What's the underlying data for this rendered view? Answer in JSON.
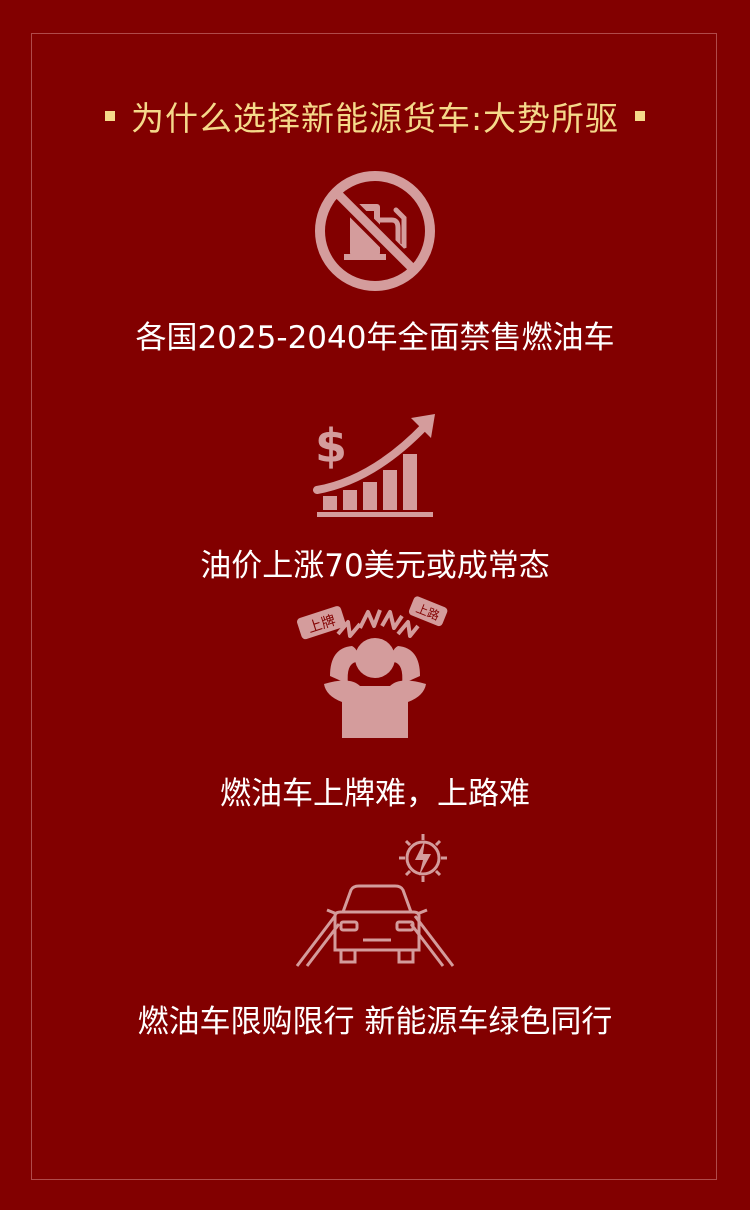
{
  "title": "为什么选择新能源货车:大势所驱",
  "colors": {
    "background": "#820000",
    "title": "#f5d98a",
    "icon": "#d49c9c",
    "caption": "#ffffff"
  },
  "items": [
    {
      "icon": "no-fuel-icon",
      "text": "各国2025-2040年全面禁售燃油车"
    },
    {
      "icon": "price-rising-icon",
      "text": "油价上涨70美元或成常态",
      "symbol": "$"
    },
    {
      "icon": "stressed-person-icon",
      "text": "燃油车上牌难，上路难",
      "bubble_left": "上牌",
      "bubble_right": "上路"
    },
    {
      "icon": "car-restriction-icon",
      "text": "燃油车限购限行 新能源车绿色同行"
    }
  ]
}
